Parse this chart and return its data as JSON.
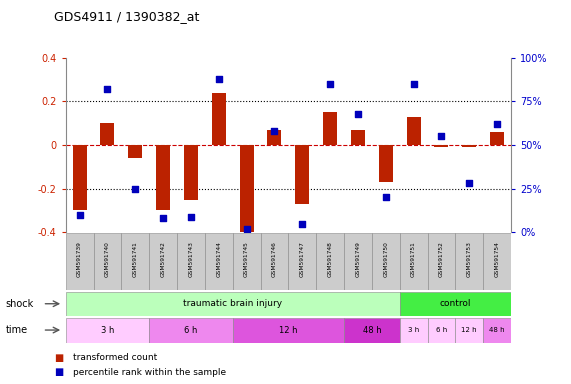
{
  "title": "GDS4911 / 1390382_at",
  "samples": [
    "GSM591739",
    "GSM591740",
    "GSM591741",
    "GSM591742",
    "GSM591743",
    "GSM591744",
    "GSM591745",
    "GSM591746",
    "GSM591747",
    "GSM591748",
    "GSM591749",
    "GSM591750",
    "GSM591751",
    "GSM591752",
    "GSM591753",
    "GSM591754"
  ],
  "bar_values": [
    -0.3,
    0.1,
    -0.06,
    -0.3,
    -0.25,
    0.24,
    -0.42,
    0.07,
    -0.27,
    0.15,
    0.07,
    -0.17,
    0.13,
    -0.01,
    -0.01,
    0.06
  ],
  "dot_values": [
    10,
    82,
    25,
    8,
    9,
    88,
    2,
    58,
    5,
    85,
    68,
    20,
    85,
    55,
    28,
    62
  ],
  "bar_color": "#bb2200",
  "dot_color": "#0000bb",
  "ylim": [
    -0.4,
    0.4
  ],
  "y2lim": [
    0,
    100
  ],
  "yticks": [
    -0.4,
    -0.2,
    0.0,
    0.2,
    0.4
  ],
  "y2ticks": [
    0,
    25,
    50,
    75,
    100
  ],
  "y2ticklabels": [
    "0%",
    "25%",
    "50%",
    "75%",
    "100%"
  ],
  "shock_groups": [
    {
      "text": "traumatic brain injury",
      "start": 0,
      "end": 12,
      "color": "#bbffbb"
    },
    {
      "text": "control",
      "start": 12,
      "end": 16,
      "color": "#44ee44"
    }
  ],
  "time_groups": [
    {
      "text": "3 h",
      "start": 0,
      "end": 3,
      "color": "#ffccff"
    },
    {
      "text": "6 h",
      "start": 3,
      "end": 6,
      "color": "#ee88ee"
    },
    {
      "text": "12 h",
      "start": 6,
      "end": 10,
      "color": "#dd55dd"
    },
    {
      "text": "48 h",
      "start": 10,
      "end": 12,
      "color": "#cc33cc"
    },
    {
      "text": "3 h",
      "start": 12,
      "end": 13,
      "color": "#ffccff"
    },
    {
      "text": "6 h",
      "start": 13,
      "end": 14,
      "color": "#ffccff"
    },
    {
      "text": "12 h",
      "start": 14,
      "end": 15,
      "color": "#ffccff"
    },
    {
      "text": "48 h",
      "start": 15,
      "end": 16,
      "color": "#ee88ee"
    }
  ],
  "legend_bar_label": "transformed count",
  "legend_dot_label": "percentile rank within the sample",
  "bg_color": "#ffffff",
  "tick_label_color_left": "#cc2200",
  "tick_label_color_right": "#0000cc",
  "sample_box_color": "#cccccc",
  "label_color": "shock_label_gray"
}
